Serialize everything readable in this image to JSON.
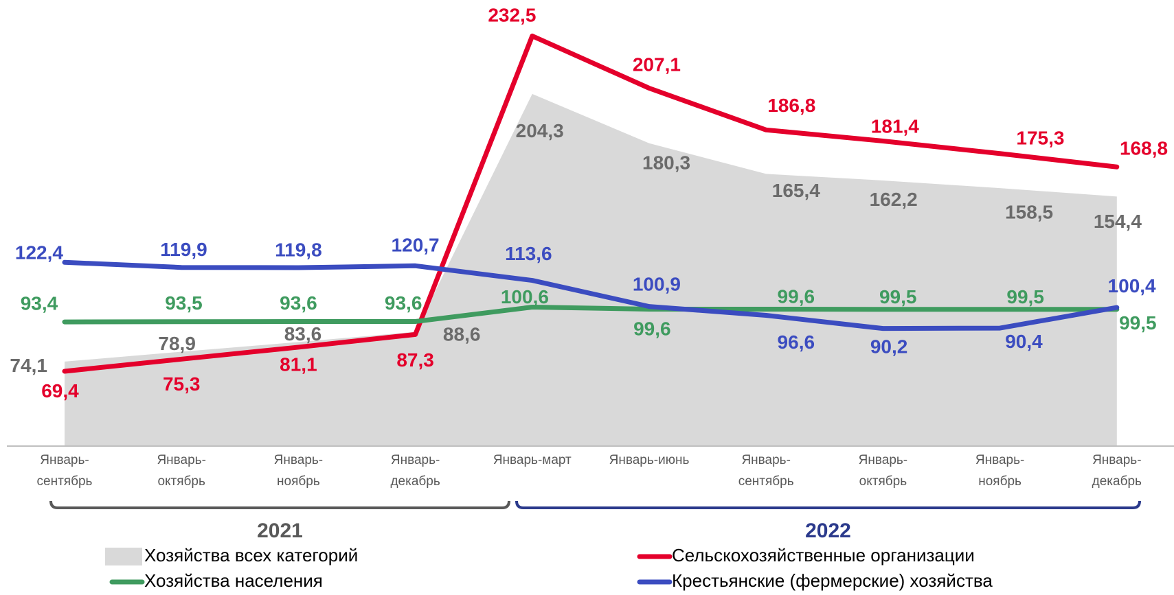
{
  "chart_data": {
    "type": "line",
    "categories": [
      "Январь-сентябрь",
      "Январь-октябрь",
      "Январь-ноябрь",
      "Январь-декабрь",
      "Январь-март",
      "Январь-июнь",
      "Январь-сентябрь",
      "Январь-октябрь",
      "Январь-ноябрь",
      "Январь-декабрь"
    ],
    "x_groups": [
      {
        "label": "2021",
        "color": "#595959"
      },
      {
        "label": "2022",
        "color": "#2b3a8c"
      }
    ],
    "ylim": [
      33,
      250
    ],
    "series": [
      {
        "name": "Хозяйства всех категорий",
        "type": "area",
        "color": "#d9d9d9",
        "label_color": "#6b6b6b",
        "values": [
          74.1,
          78.9,
          83.6,
          88.6,
          204.3,
          180.3,
          165.4,
          162.2,
          158.5,
          154.4
        ],
        "value_labels": [
          "74,1",
          "78,9",
          "83,6",
          "88,6",
          "204,3",
          "180,3",
          "165,4",
          "162,2",
          "158,5",
          "154,4"
        ]
      },
      {
        "name": "Сельскохозяйственные организации",
        "type": "line",
        "color": "#e4002b",
        "label_color": "#e4002b",
        "values": [
          69.4,
          75.3,
          81.1,
          87.3,
          232.5,
          207.1,
          186.8,
          181.4,
          175.3,
          168.8
        ],
        "value_labels": [
          "69,4",
          "75,3",
          "81,1",
          "87,3",
          "232,5",
          "207,1",
          "186,8",
          "181,4",
          "175,3",
          "168,8"
        ]
      },
      {
        "name": "Хозяйства населения",
        "type": "line",
        "color": "#3f9b5f",
        "label_color": "#3f9b5f",
        "values": [
          93.4,
          93.5,
          93.6,
          93.6,
          100.6,
          99.6,
          99.6,
          99.5,
          99.5,
          99.5
        ],
        "value_labels": [
          "93,4",
          "93,5",
          "93,6",
          "93,6",
          "100,6",
          "99,6",
          "99,6",
          "99,5",
          "99,5",
          "99,5"
        ]
      },
      {
        "name": "Крестьянские (фермерские) хозяйства",
        "type": "line",
        "color": "#3b4cc0",
        "label_color": "#3b4cc0",
        "values": [
          122.4,
          119.9,
          119.8,
          120.7,
          113.6,
          100.9,
          96.6,
          90.2,
          90.4,
          100.4
        ],
        "value_labels": [
          "122,4",
          "119,9",
          "119,8",
          "120,7",
          "113,6",
          "100,9",
          "96,6",
          "90,2",
          "90,4",
          "100,4"
        ]
      }
    ]
  }
}
